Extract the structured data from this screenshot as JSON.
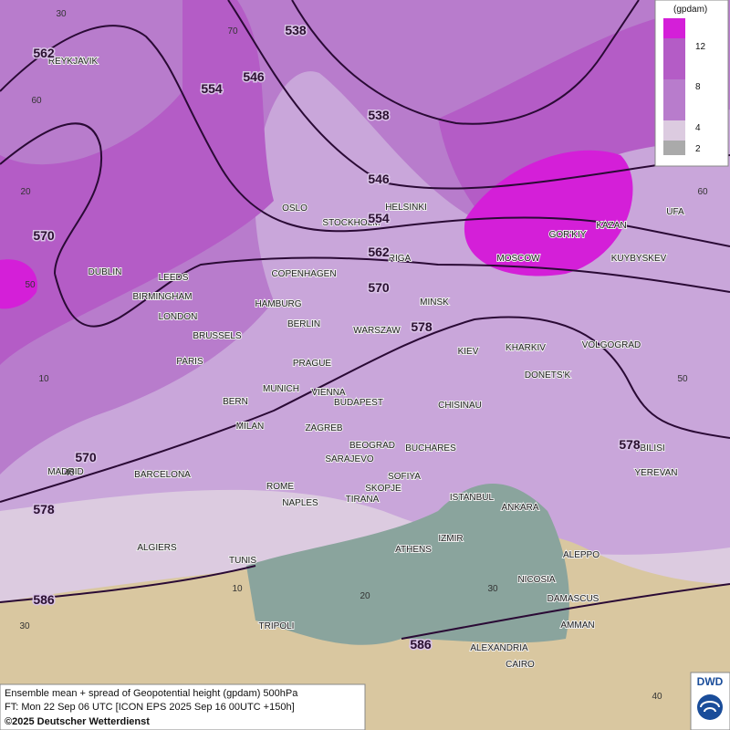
{
  "legend": {
    "unit": "(gpdam)",
    "levels": [
      "12",
      "8",
      "4",
      "2"
    ]
  },
  "cities": [
    "REYKJAVIK",
    "OSLO",
    "STOCKHOLM",
    "HELSINKI",
    "RIGA",
    "GOR'KIY",
    "KAZAN",
    "UFA",
    "MOSCOW",
    "KUYBYSKEV",
    "DUBLIN",
    "LEEDS",
    "BIRMINGHAM",
    "LONDON",
    "COPENHAGEN",
    "HAMBURG",
    "BERLIN",
    "MINSK",
    "WARSZAW",
    "KIEV",
    "KHARKIV",
    "VOLGOGRAD",
    "BRUSSELS",
    "PARIS",
    "PRAGUE",
    "DONETS'K",
    "MUNICH",
    "VIENNA",
    "BERN",
    "BUDAPEST",
    "CHISINAU",
    "MILAN",
    "ZAGREB",
    "BEOGRAD",
    "BUCHARES",
    "TBILISI",
    "SARAJEVO",
    "MADRID",
    "BARCELONA",
    "SOFIYA",
    "YEREVAN",
    "ROME",
    "SKOPJE",
    "NAPLES",
    "TIRANA",
    "ISTANBUL",
    "ANKARA",
    "IZMIR",
    "ALGIERS",
    "ATHENS",
    "ALEPPO",
    "TUNIS",
    "NICOSIA",
    "DAMASCUS",
    "TRIPOLI",
    "AMMAN",
    "ALEXANDRIA",
    "CAIRO"
  ],
  "contour_labels": [
    "562",
    "538",
    "546",
    "554",
    "538",
    "546",
    "554",
    "562",
    "570",
    "578",
    "570",
    "570",
    "578",
    "586",
    "586",
    "578"
  ],
  "graticule_labels": [
    "30",
    "70",
    "60",
    "20",
    "60",
    "50",
    "10",
    "50",
    "40",
    "10",
    "20",
    "30",
    "30",
    "40"
  ],
  "footer": {
    "line1": "Ensemble mean + spread of Geopotential height (gpdam) 500hPa",
    "line2": "FT: Mon 22 Sep 06 UTC [ICON EPS 2025 Sep 16 00UTC +150h]",
    "copyright": "©2025 Deutscher Wetterdienst"
  },
  "logo": "DWD"
}
